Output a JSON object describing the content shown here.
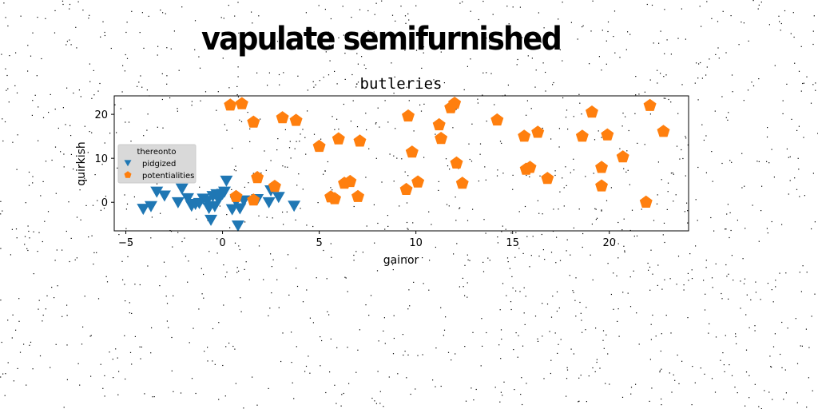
{
  "suptitle": "vapulate semifurnished",
  "chart_data": {
    "type": "scatter",
    "title": "butleries",
    "xlabel": "gainor",
    "ylabel": "quirkish",
    "xlim": [
      -5.6,
      24.1
    ],
    "ylim": [
      -6.5,
      24.2
    ],
    "xticks": [
      -5,
      0,
      5,
      10,
      15,
      20
    ],
    "yticks": [
      0,
      10,
      20
    ],
    "grid": false,
    "legend": {
      "title": "thereonto",
      "placement": "center-left"
    },
    "series": [
      {
        "name": "pidgized",
        "marker": "triangle-down",
        "color": "#1f77b4",
        "points": [
          [
            -4.1,
            -1.5
          ],
          [
            -3.7,
            -0.9
          ],
          [
            -3.4,
            2.4
          ],
          [
            -3.0,
            1.5
          ],
          [
            -2.3,
            0.0
          ],
          [
            -2.1,
            3.1
          ],
          [
            -1.8,
            0.9
          ],
          [
            -1.6,
            -0.8
          ],
          [
            -1.4,
            -0.4
          ],
          [
            -1.2,
            -0.2
          ],
          [
            -1.0,
            0.8
          ],
          [
            -0.8,
            0.3
          ],
          [
            -0.7,
            -1.3
          ],
          [
            -0.6,
            -4.0
          ],
          [
            -0.5,
            1.4
          ],
          [
            -0.4,
            -0.9
          ],
          [
            -0.3,
            1.8
          ],
          [
            -0.2,
            0.6
          ],
          [
            0.0,
            1.9
          ],
          [
            0.1,
            2.4
          ],
          [
            0.2,
            4.9
          ],
          [
            0.5,
            -1.6
          ],
          [
            0.7,
            0.2
          ],
          [
            0.8,
            -5.3
          ],
          [
            0.9,
            -1.4
          ],
          [
            1.1,
            0.4
          ],
          [
            1.8,
            0.7
          ],
          [
            2.4,
            0.0
          ],
          [
            2.5,
            2.7
          ],
          [
            2.9,
            1.2
          ],
          [
            3.7,
            -0.8
          ]
        ]
      },
      {
        "name": "potentialities",
        "marker": "pentagon",
        "color": "#ff7f0e",
        "points": [
          [
            0.4,
            22.1
          ],
          [
            1.0,
            22.4
          ],
          [
            1.6,
            18.2
          ],
          [
            1.8,
            5.6
          ],
          [
            3.1,
            19.2
          ],
          [
            3.8,
            18.6
          ],
          [
            0.7,
            1.3
          ],
          [
            1.6,
            0.5
          ],
          [
            2.7,
            3.6
          ],
          [
            5.0,
            12.7
          ],
          [
            5.6,
            1.2
          ],
          [
            5.8,
            0.8
          ],
          [
            6.0,
            14.4
          ],
          [
            6.3,
            4.3
          ],
          [
            6.6,
            4.7
          ],
          [
            7.0,
            1.3
          ],
          [
            7.1,
            13.9
          ],
          [
            9.5,
            2.9
          ],
          [
            9.6,
            19.6
          ],
          [
            9.8,
            11.4
          ],
          [
            10.1,
            4.6
          ],
          [
            11.2,
            17.6
          ],
          [
            11.3,
            14.5
          ],
          [
            11.8,
            21.5
          ],
          [
            12.0,
            22.5
          ],
          [
            12.1,
            8.9
          ],
          [
            12.4,
            4.3
          ],
          [
            14.2,
            18.7
          ],
          [
            15.6,
            15.0
          ],
          [
            15.7,
            7.5
          ],
          [
            15.9,
            7.9
          ],
          [
            16.3,
            15.9
          ],
          [
            16.8,
            5.4
          ],
          [
            18.6,
            15.0
          ],
          [
            19.1,
            20.5
          ],
          [
            19.6,
            3.7
          ],
          [
            19.6,
            7.9
          ],
          [
            19.9,
            15.3
          ],
          [
            20.7,
            10.3
          ],
          [
            21.9,
            0.0
          ],
          [
            22.1,
            22.0
          ],
          [
            22.8,
            16.1
          ]
        ]
      }
    ]
  }
}
